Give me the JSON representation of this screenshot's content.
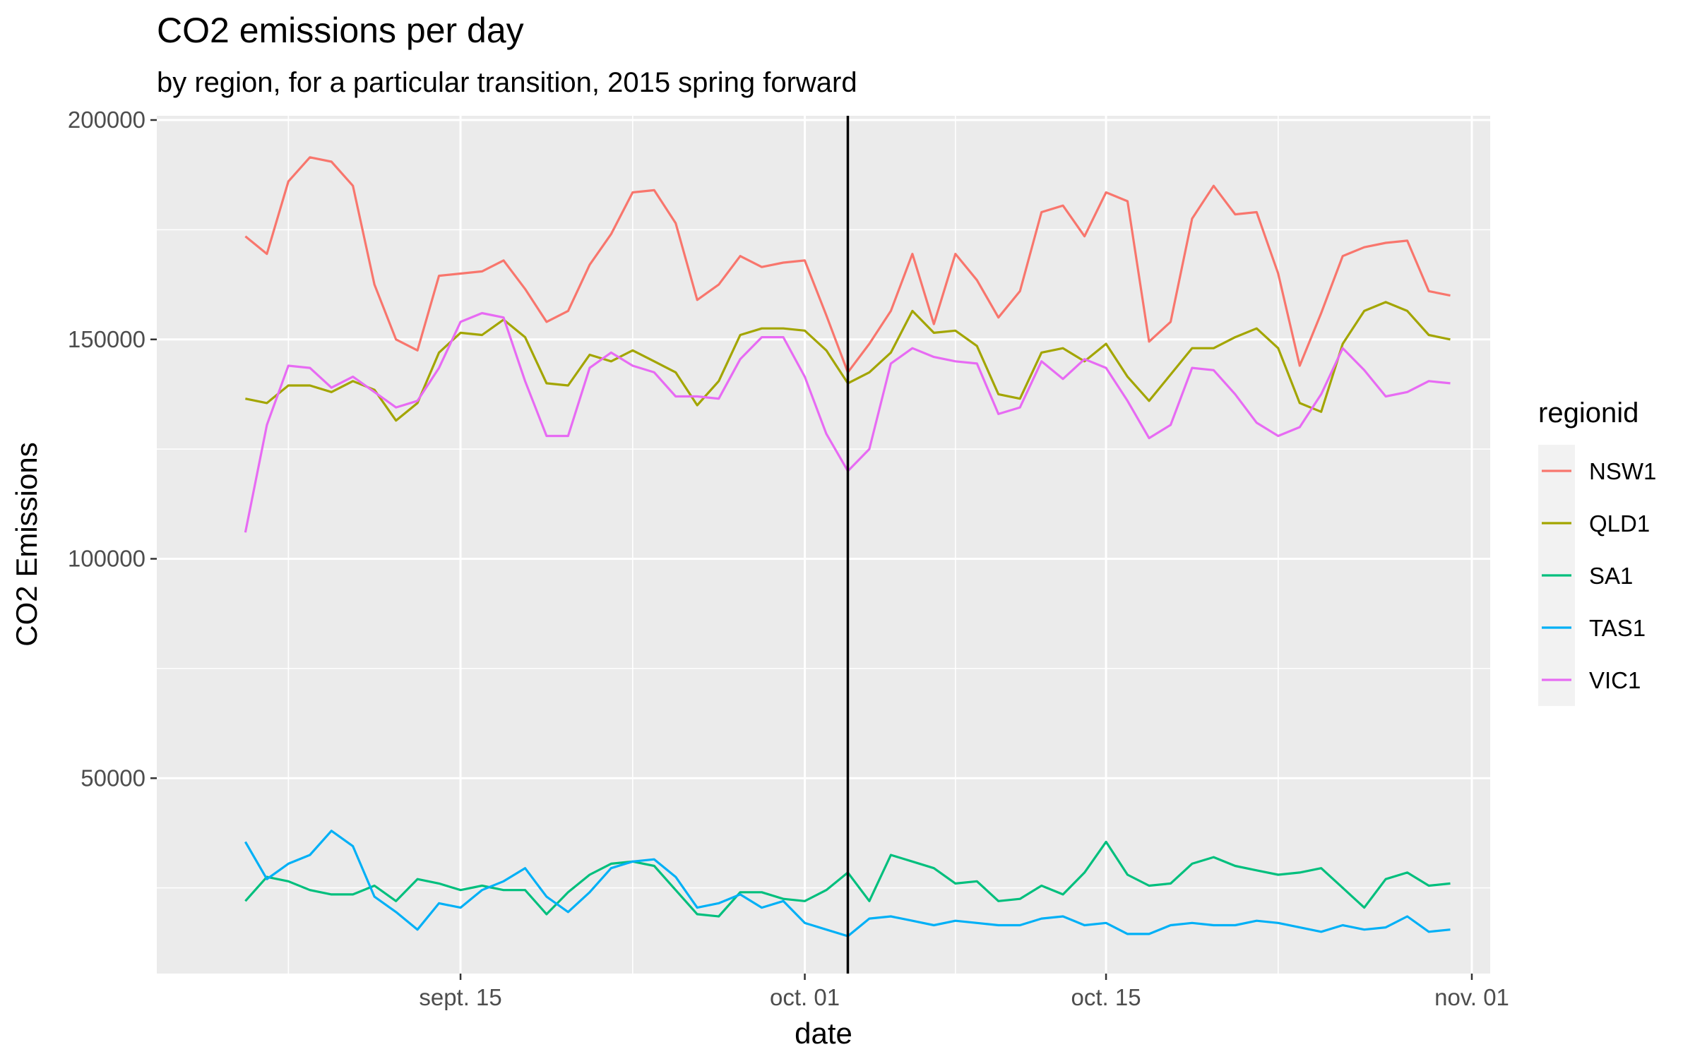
{
  "chart_data": {
    "type": "line",
    "title": "CO2 emissions per day",
    "subtitle": "by region, for a particular transition, 2015 spring forward",
    "xlabel": "date",
    "ylabel": "CO2 Emissions",
    "x_tick_labels": [
      {
        "label": "sept. 15",
        "date": "2015-09-15"
      },
      {
        "label": "oct. 01",
        "date": "2015-10-01"
      },
      {
        "label": "oct. 15",
        "date": "2015-10-15"
      },
      {
        "label": "nov. 01",
        "date": "2015-11-01"
      }
    ],
    "y_ticks": [
      50000,
      100000,
      150000,
      200000
    ],
    "y_tick_labels": [
      "50000",
      "100000",
      "150000",
      "200000"
    ],
    "xlim": [
      "2015-09-02",
      "2015-11-01"
    ],
    "ylim": [
      0,
      200000
    ],
    "grid": true,
    "legend": {
      "title": "regionid",
      "position": "right"
    },
    "transition_line": {
      "date": "2015-10-03",
      "color": "#000000"
    },
    "x": [
      "2015-09-05",
      "2015-09-06",
      "2015-09-07",
      "2015-09-08",
      "2015-09-09",
      "2015-09-10",
      "2015-09-11",
      "2015-09-12",
      "2015-09-13",
      "2015-09-14",
      "2015-09-15",
      "2015-09-16",
      "2015-09-17",
      "2015-09-18",
      "2015-09-19",
      "2015-09-20",
      "2015-09-21",
      "2015-09-22",
      "2015-09-23",
      "2015-09-24",
      "2015-09-25",
      "2015-09-26",
      "2015-09-27",
      "2015-09-28",
      "2015-09-29",
      "2015-09-30",
      "2015-10-01",
      "2015-10-02",
      "2015-10-03",
      "2015-10-04",
      "2015-10-05",
      "2015-10-06",
      "2015-10-07",
      "2015-10-08",
      "2015-10-09",
      "2015-10-10",
      "2015-10-11",
      "2015-10-12",
      "2015-10-13",
      "2015-10-14",
      "2015-10-15",
      "2015-10-16",
      "2015-10-17",
      "2015-10-18",
      "2015-10-19",
      "2015-10-20",
      "2015-10-21",
      "2015-10-22",
      "2015-10-23",
      "2015-10-24",
      "2015-10-25",
      "2015-10-26",
      "2015-10-27",
      "2015-10-28",
      "2015-10-29",
      "2015-10-30",
      "2015-10-31"
    ],
    "series": [
      {
        "name": "NSW1",
        "color": "#F8766D",
        "values": [
          173500,
          169500,
          186000,
          191500,
          190500,
          185000,
          162500,
          150000,
          147500,
          164500,
          165000,
          165500,
          168000,
          161500,
          154000,
          156500,
          167000,
          174000,
          183500,
          184000,
          176500,
          159000,
          162500,
          169000,
          166500,
          167500,
          168000,
          155500,
          142500,
          149000,
          156500,
          169500,
          153500,
          169500,
          163500,
          155000,
          161000,
          179000,
          180500,
          173500,
          183500,
          181500,
          149500,
          154000,
          177500,
          185000,
          178500,
          179000,
          165000,
          144000,
          156000,
          169000,
          171000,
          172000,
          172500,
          161000,
          160000
        ]
      },
      {
        "name": "QLD1",
        "color": "#A3A500",
        "values": [
          136500,
          135500,
          139500,
          139500,
          138000,
          140500,
          138500,
          131500,
          135500,
          147000,
          151500,
          151000,
          154500,
          150500,
          140000,
          139500,
          146500,
          145000,
          147500,
          145000,
          142500,
          135000,
          140500,
          151000,
          152500,
          152500,
          152000,
          147500,
          140000,
          142500,
          147000,
          156500,
          151500,
          152000,
          148500,
          137500,
          136500,
          147000,
          148000,
          145000,
          149000,
          141500,
          136000,
          142000,
          148000,
          148000,
          150500,
          152500,
          148000,
          135500,
          133500,
          149000,
          156500,
          158500,
          156500,
          151000,
          150000
        ]
      },
      {
        "name": "SA1",
        "color": "#00BF7D",
        "values": [
          22000,
          27500,
          26500,
          24500,
          23500,
          23500,
          25500,
          22000,
          27000,
          26000,
          24500,
          25500,
          24500,
          24500,
          19000,
          24000,
          28000,
          30500,
          31000,
          30000,
          24500,
          19000,
          18500,
          24000,
          24000,
          22500,
          22000,
          24500,
          28500,
          22000,
          32500,
          31000,
          29500,
          26000,
          26500,
          22000,
          22500,
          25500,
          23500,
          28500,
          35500,
          28000,
          25500,
          26000,
          30500,
          32000,
          30000,
          29000,
          28000,
          28500,
          29500,
          25000,
          20500,
          27000,
          28500,
          25500,
          26000
        ]
      },
      {
        "name": "TAS1",
        "color": "#00B0F6",
        "values": [
          35500,
          27000,
          30500,
          32500,
          38000,
          34500,
          23000,
          19500,
          15500,
          21500,
          20500,
          24500,
          26500,
          29500,
          23000,
          19500,
          24000,
          29500,
          31000,
          31500,
          27500,
          20500,
          21500,
          23500,
          20500,
          22000,
          17000,
          15500,
          14000,
          18000,
          18500,
          17500,
          16500,
          17500,
          17000,
          16500,
          16500,
          18000,
          18500,
          16500,
          17000,
          14500,
          14500,
          16500,
          17000,
          16500,
          16500,
          17500,
          17000,
          16000,
          15000,
          16500,
          15500,
          16000,
          18500,
          15000,
          15500
        ]
      },
      {
        "name": "VIC1",
        "color": "#E76BF3",
        "values": [
          106000,
          130500,
          144000,
          143500,
          139000,
          141500,
          138000,
          134500,
          136000,
          143500,
          154000,
          156000,
          155000,
          140500,
          128000,
          128000,
          143500,
          147000,
          144000,
          142500,
          137000,
          137000,
          136500,
          145500,
          150500,
          150500,
          141500,
          128500,
          120000,
          125000,
          144500,
          148000,
          146000,
          145000,
          144500,
          133000,
          134500,
          145000,
          141000,
          145500,
          143500,
          136000,
          127500,
          130500,
          143500,
          143000,
          137500,
          131000,
          128000,
          130000,
          137500,
          148000,
          143000,
          137000,
          138000,
          140500,
          140000
        ]
      }
    ]
  }
}
